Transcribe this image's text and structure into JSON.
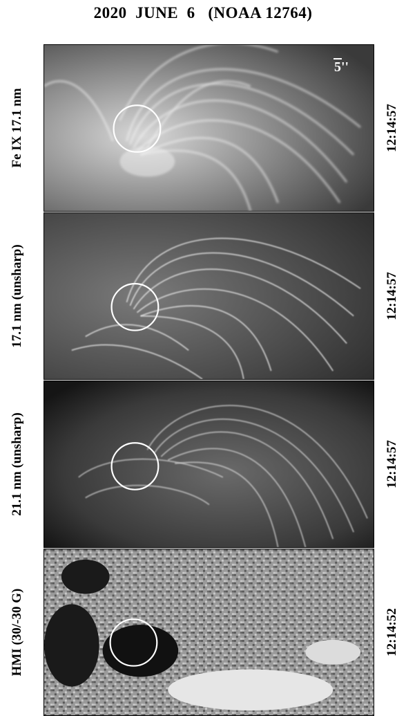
{
  "title": "2020  JUNE  6   (NOAA 12764)",
  "scale_label": "5''",
  "panels": [
    {
      "label": "Fe IX 17.1 nm",
      "time": "12:14:57",
      "style": "euv"
    },
    {
      "label": "17.1 nm  (unsharp)",
      "time": "12:14:57",
      "style": "unsharp"
    },
    {
      "label": "21.1 nm  (unsharp)",
      "time": "12:14:57",
      "style": "unsharp211"
    },
    {
      "label": "HMI  (30/-30 G)",
      "time": "12:14:52",
      "style": "hmi"
    }
  ]
}
